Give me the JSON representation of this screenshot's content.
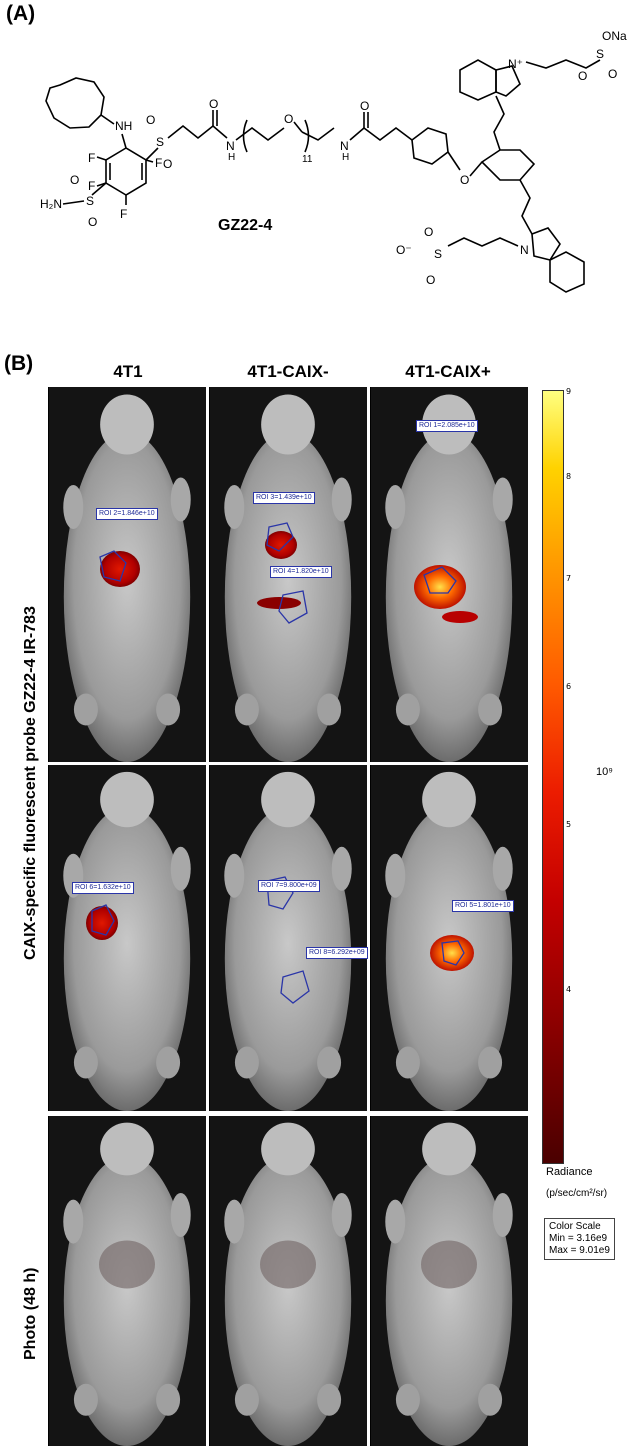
{
  "panel_a": {
    "letter": "(A)",
    "compound": "GZ22-4",
    "atoms": {
      "nh": "NH",
      "f": "F",
      "h2n": "H₂N",
      "s": "S",
      "o": "O",
      "n": "N",
      "h": "H",
      "eleven": "11",
      "n_plus": "N⁺",
      "ona": "ONa",
      "o_minus": "O⁻"
    }
  },
  "panel_b": {
    "letter": "(B)",
    "columns": [
      "4T1",
      "4T1-CAIX-",
      "4T1-CAIX+"
    ],
    "row_label_fluor": "CAIX-specific fluorescent probe GZ22-4 IR-783",
    "row_label_photo": "Photo (48 h)",
    "rois": {
      "r2": "ROI 2=1.846e+10",
      "r3": "ROI 3=1.439e+10",
      "r4": "ROI 4=1.820e+10",
      "r1": "ROI 1=2.085e+10",
      "r6": "ROI 6=1.632e+10",
      "r7": "ROI 7=9.800e+09",
      "r8": "ROI 8=6.292e+09",
      "r5": "ROI 5=1.801e+10"
    },
    "scale": {
      "ticks": [
        "9",
        "8",
        "7",
        "6",
        "5",
        "4"
      ],
      "exponent": "10⁹",
      "radiance_label": "Radiance",
      "radiance_unit": "(p/sec/cm²/sr)",
      "color_scale_title": "Color Scale",
      "min": "Min = 3.16e9",
      "max": "Max = 9.01e9"
    }
  },
  "colors": {
    "roi_outline": "#2a35a8",
    "hot": "#d01000",
    "bright": "#ffcc00"
  }
}
